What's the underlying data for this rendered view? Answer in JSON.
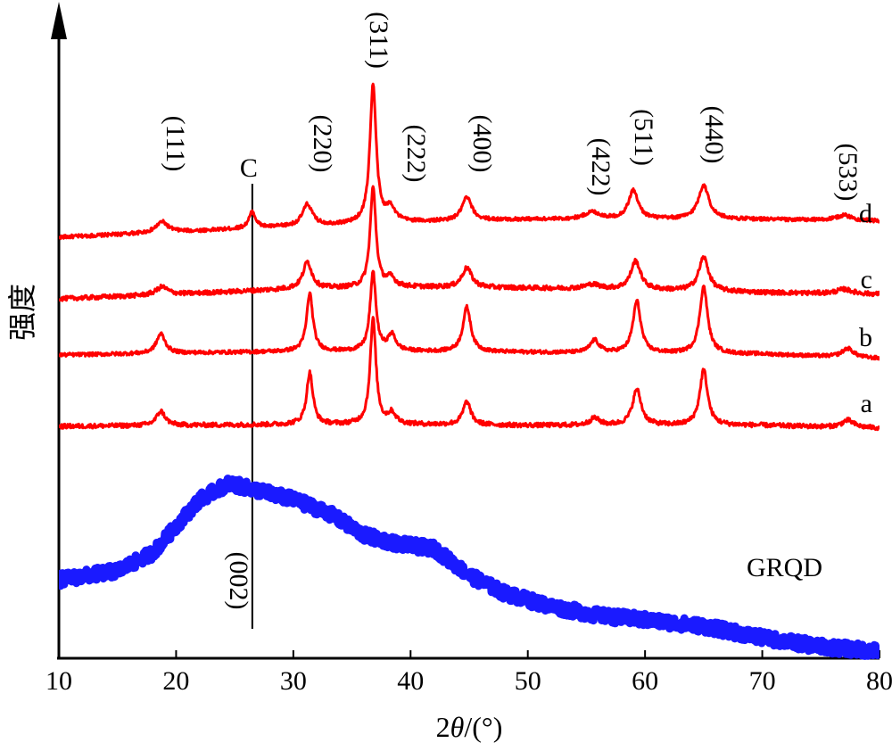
{
  "chart_data": {
    "type": "line",
    "xlabel_prefix": "2",
    "xlabel_symbol": "θ",
    "xlabel_suffix": "/(°)",
    "ylabel": "强度",
    "xlim": [
      10,
      80
    ],
    "xticks": [
      10,
      20,
      30,
      40,
      50,
      60,
      70,
      80
    ],
    "y_unit": "relative intensity (arbitrary, stacked)",
    "grid": false,
    "colors": {
      "doped": "#ff0000",
      "grqd": "#1a1aff",
      "axis": "#000000"
    },
    "reference_line": {
      "label": "C",
      "x": 26.5
    },
    "peak_labels": [
      {
        "text": "(111)",
        "x": 18.5
      },
      {
        "text": "(220)",
        "x": 31.2
      },
      {
        "text": "(311)",
        "x": 36.8
      },
      {
        "text": "(222)",
        "x": 38.6
      },
      {
        "text": "(400)",
        "x": 44.8
      },
      {
        "text": "(422)",
        "x": 55.5
      },
      {
        "text": "(511)",
        "x": 59.0
      },
      {
        "text": "(440)",
        "x": 65.0
      },
      {
        "text": "(533)",
        "x": 77.0
      },
      {
        "text": "(002)",
        "x": 24.5
      }
    ],
    "series": [
      {
        "name": "d",
        "color": "#ff0000",
        "baseline": 252,
        "noise": 2,
        "peaks": [
          [
            18.8,
            12,
            0.6
          ],
          [
            26.5,
            18,
            0.35
          ],
          [
            31.2,
            24,
            0.5
          ],
          [
            36.8,
            155,
            0.32
          ],
          [
            38.3,
            16,
            0.45
          ],
          [
            44.8,
            26,
            0.5
          ],
          [
            55.5,
            8,
            0.8
          ],
          [
            59.0,
            32,
            0.5
          ],
          [
            65.0,
            38,
            0.55
          ],
          [
            77.0,
            6,
            0.8
          ]
        ],
        "points": [
          [
            10,
            248
          ],
          [
            20,
            254
          ],
          [
            30,
            260
          ],
          [
            40,
            265
          ],
          [
            50,
            268
          ],
          [
            60,
            268
          ],
          [
            70,
            268
          ],
          [
            80,
            266
          ]
        ]
      },
      {
        "name": "c",
        "color": "#ff0000",
        "baseline": 140,
        "noise": 2.5,
        "peaks": [
          [
            18.8,
            9,
            0.6
          ],
          [
            31.2,
            30,
            0.45
          ],
          [
            36.8,
            112,
            0.3
          ],
          [
            38.3,
            10,
            0.45
          ],
          [
            44.8,
            22,
            0.5
          ],
          [
            55.5,
            5,
            0.8
          ],
          [
            59.2,
            32,
            0.5
          ],
          [
            65.0,
            38,
            0.5
          ],
          [
            77.0,
            5,
            0.8
          ]
        ],
        "points": [
          [
            10,
            135
          ],
          [
            20,
            140
          ],
          [
            30,
            146
          ],
          [
            40,
            148
          ],
          [
            50,
            147
          ],
          [
            60,
            145
          ],
          [
            70,
            142
          ],
          [
            80,
            140
          ]
        ]
      },
      {
        "name": "b",
        "color": "#ff0000",
        "baseline": 75,
        "noise": 2,
        "peaks": [
          [
            18.7,
            22,
            0.45
          ],
          [
            31.4,
            65,
            0.32
          ],
          [
            36.8,
            88,
            0.3
          ],
          [
            38.4,
            18,
            0.4
          ],
          [
            44.8,
            50,
            0.4
          ],
          [
            55.7,
            14,
            0.45
          ],
          [
            59.3,
            58,
            0.4
          ],
          [
            65.0,
            75,
            0.4
          ],
          [
            77.3,
            10,
            0.6
          ]
        ],
        "points": [
          [
            10,
            72
          ],
          [
            20,
            74
          ],
          [
            30,
            76
          ],
          [
            40,
            76
          ],
          [
            50,
            75
          ],
          [
            60,
            74
          ],
          [
            70,
            73
          ],
          [
            80,
            68
          ]
        ]
      },
      {
        "name": "a",
        "color": "#ff0000",
        "baseline": 8,
        "noise": 2.5,
        "peaks": [
          [
            18.7,
            16,
            0.45
          ],
          [
            31.4,
            58,
            0.32
          ],
          [
            36.8,
            118,
            0.3
          ],
          [
            38.4,
            12,
            0.4
          ],
          [
            44.8,
            26,
            0.4
          ],
          [
            55.7,
            8,
            0.5
          ],
          [
            59.3,
            40,
            0.45
          ],
          [
            65.0,
            62,
            0.4
          ],
          [
            77.3,
            8,
            0.6
          ]
        ],
        "points": [
          [
            10,
            8
          ],
          [
            20,
            9
          ],
          [
            30,
            10
          ],
          [
            40,
            10
          ],
          [
            50,
            9
          ],
          [
            60,
            9
          ],
          [
            70,
            9
          ],
          [
            80,
            6
          ]
        ]
      },
      {
        "name": "GRQD",
        "color": "#1a1aff",
        "baseline": 0,
        "noise": 7,
        "peaks": [],
        "points": [
          [
            10,
            -180
          ],
          [
            15,
            -170
          ],
          [
            18,
            -150
          ],
          [
            20,
            -120
          ],
          [
            22,
            -90
          ],
          [
            24.5,
            -72
          ],
          [
            27,
            -80
          ],
          [
            30,
            -90
          ],
          [
            33,
            -105
          ],
          [
            36,
            -130
          ],
          [
            39,
            -140
          ],
          [
            42,
            -145
          ],
          [
            45,
            -175
          ],
          [
            48,
            -195
          ],
          [
            52,
            -210
          ],
          [
            56,
            -220
          ],
          [
            60,
            -225
          ],
          [
            65,
            -232
          ],
          [
            70,
            -245
          ],
          [
            75,
            -255
          ],
          [
            80,
            -260
          ]
        ]
      }
    ]
  }
}
